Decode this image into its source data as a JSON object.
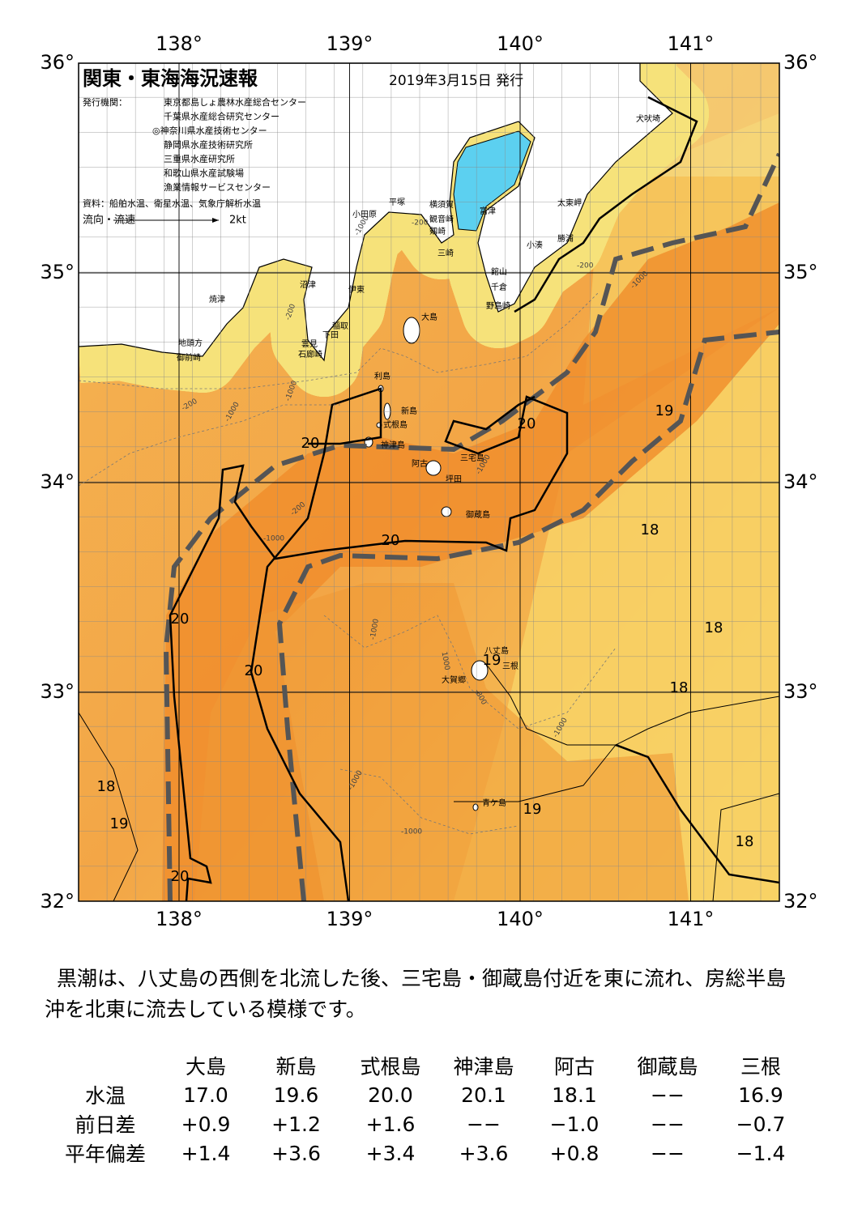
{
  "map": {
    "title": "関東・東海海況速報",
    "issue_date": "2019年3月15日 発行",
    "publisher_label": "発行機関：",
    "publishers": [
      "東京都島しょ農林水産総合センター",
      "千葉県水産総合研究センター",
      "◎神奈川県水産技術センター",
      "静岡県水産技術研究所",
      "三重県水産研究所",
      "和歌山県水産試験場",
      "漁業情報サービスセンター"
    ],
    "source": "資料：船舶水温、衛星水温、気象庁解析水温",
    "legend_label": "流向・流速",
    "legend_scale": "2kt",
    "lon_ticks": [
      {
        "value": 138,
        "label": "138°"
      },
      {
        "value": 139,
        "label": "139°"
      },
      {
        "value": 140,
        "label": "140°"
      },
      {
        "value": 141,
        "label": "141°"
      }
    ],
    "lat_ticks": [
      {
        "value": 36,
        "label": "36°"
      },
      {
        "value": 35,
        "label": "35°"
      },
      {
        "value": 34,
        "label": "34°"
      },
      {
        "value": 33,
        "label": "33°"
      },
      {
        "value": 32,
        "label": "32°"
      }
    ],
    "places": [
      "犬吠埼",
      "太東岬",
      "勝浦",
      "小湊",
      "富津",
      "館山",
      "千倉",
      "野島崎",
      "横須賀",
      "観音崎",
      "剱崎",
      "三崎",
      "平塚",
      "小田原",
      "沼津",
      "伊東",
      "稲取",
      "下田",
      "雲見",
      "石廊崎",
      "焼津",
      "地頭方",
      "御前崎",
      "大島",
      "利島",
      "新島",
      "式根島",
      "神津島",
      "阿古",
      "三宅島",
      "坪田",
      "御蔵島",
      "八丈島",
      "三根",
      "大賀郷",
      "青ケ島"
    ],
    "isotherm_labels": [
      "20",
      "20",
      "20",
      "20",
      "20",
      "20",
      "19",
      "19",
      "19",
      "19",
      "18",
      "18",
      "18",
      "18",
      "18"
    ],
    "depth_labels": [
      "-1000",
      "-200",
      "-200",
      "-1000",
      "-200",
      "-1000",
      "-200",
      "-1000",
      "-1000",
      "-1000",
      "-200",
      "-1000",
      "1000",
      "-1000",
      "-1000",
      "-1000",
      "-800"
    ]
  },
  "description": "黒潮は、八丈島の西側を北流した後、三宅島・御蔵島付近を東に流れ、房総半島沖を北東に流去している模様です。",
  "table": {
    "header": [
      "大島",
      "新島",
      "式根島",
      "神津島",
      "阿古",
      "御蔵島",
      "三根"
    ],
    "rows": [
      [
        "水温",
        "17.0",
        "19.6",
        "20.0",
        "20.1",
        "18.1",
        "−−",
        "16.9"
      ],
      [
        "前日差",
        "+0.9",
        "+1.2",
        "+1.6",
        "−−",
        "−1.0",
        "−−",
        "−0.7"
      ],
      [
        "平年偏差",
        "+1.4",
        "+3.6",
        "+3.4",
        "+3.6",
        "+0.8",
        "−−",
        "−1.4"
      ]
    ]
  }
}
